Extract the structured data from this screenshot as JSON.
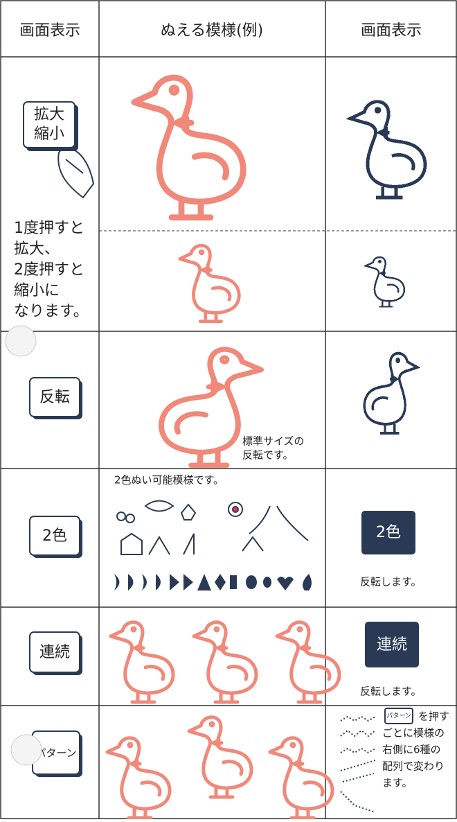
{
  "header": {
    "columns": [
      "画面表示",
      "ぬえる模様(例)",
      "画面表示"
    ]
  },
  "rows": [
    {
      "button": [
        "拡大",
        "縮小"
      ],
      "note": [
        "1度押すと",
        "拡大、",
        "2度押すと",
        "縮小に",
        "なります。"
      ]
    },
    {
      "button": [
        "反転"
      ],
      "note": [
        "標準サイズの",
        "反転です。"
      ]
    },
    {
      "button": [
        "2色"
      ],
      "caption": "2色ぬい可能模様です。",
      "display": "2色",
      "result": "反転します。"
    },
    {
      "button": [
        "連続"
      ],
      "display": "連続",
      "result": "反転します。"
    },
    {
      "button": [
        "パターン"
      ],
      "display": "パターン",
      "note": [
        "を押す",
        "ごとに模様の",
        "右側に6種の",
        "配列で変わり",
        "ます。"
      ]
    }
  ]
}
